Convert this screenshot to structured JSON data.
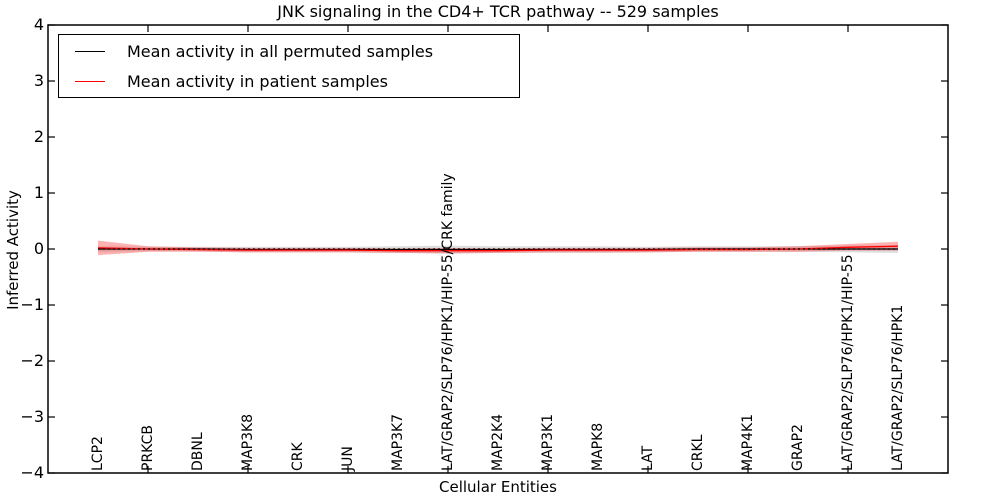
{
  "title": "JNK signaling in the CD4+ TCR pathway -- 529 samples",
  "axes": {
    "xlabel": "Cellular Entities",
    "ylabel": "Inferred Activity"
  },
  "legend": {
    "position": "upper left",
    "items": [
      {
        "label": "Mean activity in all permuted samples",
        "color": "#000000"
      },
      {
        "label": "Mean activity in patient samples",
        "color": "#ff0000"
      }
    ]
  },
  "colors": {
    "frame": "#000000",
    "background": "#ffffff",
    "permuted_line": "#000000",
    "patient_line": "#ff0000",
    "permuted_band": "rgba(0,0,0,0.13)",
    "patient_band": "rgba(255,0,0,0.30)",
    "zero_line": "#000000"
  },
  "chart_data": {
    "type": "line",
    "title": "JNK signaling in the CD4+ TCR pathway -- 529 samples",
    "xlabel": "Cellular Entities",
    "ylabel": "Inferred Activity",
    "ylim": [
      -4,
      4
    ],
    "yticks": [
      4,
      3,
      2,
      1,
      0,
      -1,
      -2,
      -3,
      -4
    ],
    "grid": false,
    "legend_position": "upper left",
    "zero_reference_line": {
      "style": "dotted",
      "color": "#000000",
      "y": 0
    },
    "categories": [
      "LCP2",
      "PRKCB",
      "DBNL",
      "MAP3K8",
      "CRK",
      "JUN",
      "MAP3K7",
      "LAT/GRAP2/SLP76/HPK1/HIP-55/CRK family",
      "MAP2K4",
      "MAP3K1",
      "MAPK8",
      "LAT",
      "CRKL",
      "MAP4K1",
      "GRAP2",
      "LAT/GRAP2/SLP76/HPK1/HIP-55",
      "LAT/GRAP2/SLP76/HPK1"
    ],
    "series": [
      {
        "name": "Mean activity in all permuted samples",
        "color": "#000000",
        "values": [
          0.0,
          0.0,
          0.0,
          -0.01,
          -0.01,
          -0.01,
          -0.01,
          -0.01,
          -0.01,
          -0.01,
          -0.01,
          -0.01,
          0.0,
          0.0,
          0.0,
          0.0,
          0.0
        ],
        "band_halfwidth": [
          0.05,
          0.04,
          0.04,
          0.05,
          0.05,
          0.05,
          0.06,
          0.07,
          0.06,
          0.06,
          0.06,
          0.05,
          0.05,
          0.05,
          0.05,
          0.06,
          0.07
        ]
      },
      {
        "name": "Mean activity in patient samples",
        "color": "#ff0000",
        "values": [
          0.02,
          0.0,
          -0.01,
          -0.02,
          -0.02,
          -0.02,
          -0.03,
          -0.03,
          -0.03,
          -0.02,
          -0.02,
          -0.02,
          -0.01,
          -0.01,
          0.0,
          0.03,
          0.05
        ],
        "band_halfwidth": [
          0.13,
          0.05,
          0.04,
          0.04,
          0.04,
          0.04,
          0.04,
          0.05,
          0.04,
          0.04,
          0.04,
          0.04,
          0.04,
          0.04,
          0.05,
          0.06,
          0.08
        ]
      }
    ]
  }
}
